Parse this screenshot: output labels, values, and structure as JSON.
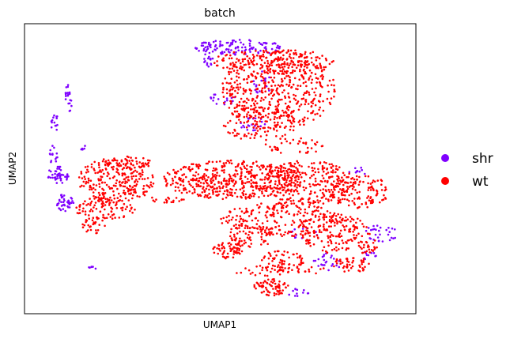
{
  "chart_data": {
    "type": "scatter",
    "title": "batch",
    "xlabel": "UMAP1",
    "ylabel": "UMAP2",
    "xticks": false,
    "yticks": false,
    "grid": false,
    "xlim": [
      0,
      100
    ],
    "ylim": [
      0,
      100
    ],
    "legend": {
      "placement": "right",
      "entries": [
        {
          "name": "shr",
          "color": "#7f00ff"
        },
        {
          "name": "wt",
          "color": "#ff0000"
        }
      ]
    },
    "series": [
      {
        "name": "shr",
        "color": "#7f00ff",
        "regions": [
          {
            "cx": 55,
            "cy": 93,
            "rx": 12,
            "ry": 2.8,
            "n": 110
          },
          {
            "cx": 47,
            "cy": 90,
            "rx": 1.6,
            "ry": 4.5,
            "n": 18
          },
          {
            "cx": 10.5,
            "cy": 75,
            "rx": 1.3,
            "ry": 5,
            "n": 20
          },
          {
            "cx": 7,
            "cy": 66,
            "rx": 1.2,
            "ry": 3,
            "n": 14
          },
          {
            "cx": 6.5,
            "cy": 55,
            "rx": 1.2,
            "ry": 3.5,
            "n": 14
          },
          {
            "cx": 8,
            "cy": 48,
            "rx": 3.2,
            "ry": 3.2,
            "n": 45
          },
          {
            "cx": 9.5,
            "cy": 38,
            "rx": 2.5,
            "ry": 3,
            "n": 40
          },
          {
            "cx": 14,
            "cy": 58,
            "rx": 0.9,
            "ry": 1.4,
            "n": 5
          },
          {
            "cx": 51,
            "cy": 75,
            "rx": 3.5,
            "ry": 2.5,
            "n": 18
          },
          {
            "cx": 58,
            "cy": 66,
            "rx": 4,
            "ry": 2.5,
            "n": 22
          },
          {
            "cx": 61,
            "cy": 80,
            "rx": 2.5,
            "ry": 5,
            "n": 18
          },
          {
            "cx": 92,
            "cy": 27,
            "rx": 4.5,
            "ry": 3,
            "n": 30
          },
          {
            "cx": 89,
            "cy": 19,
            "rx": 2,
            "ry": 2,
            "n": 10
          },
          {
            "cx": 78,
            "cy": 17,
            "rx": 4,
            "ry": 3,
            "n": 24
          },
          {
            "cx": 72,
            "cy": 27,
            "rx": 4,
            "ry": 2,
            "n": 12
          },
          {
            "cx": 70,
            "cy": 6,
            "rx": 3,
            "ry": 1.6,
            "n": 12
          },
          {
            "cx": 16.5,
            "cy": 15,
            "rx": 1.5,
            "ry": 0.6,
            "n": 6
          },
          {
            "cx": 86,
            "cy": 49,
            "rx": 2.5,
            "ry": 1.5,
            "n": 10
          }
        ]
      },
      {
        "name": "wt",
        "color": "#ff0000",
        "regions": [
          {
            "cx": 65,
            "cy": 78,
            "rx": 15,
            "ry": 14,
            "n": 520
          },
          {
            "cx": 64,
            "cy": 88,
            "rx": 16,
            "ry": 4.5,
            "n": 140
          },
          {
            "cx": 60,
            "cy": 66,
            "rx": 10,
            "ry": 6,
            "n": 110
          },
          {
            "cx": 69,
            "cy": 58,
            "rx": 8,
            "ry": 3,
            "n": 40
          },
          {
            "cx": 53,
            "cy": 46,
            "rx": 18,
            "ry": 7,
            "n": 480
          },
          {
            "cx": 73,
            "cy": 45,
            "rx": 12,
            "ry": 8,
            "n": 280
          },
          {
            "cx": 86,
            "cy": 42,
            "rx": 8,
            "ry": 6,
            "n": 130
          },
          {
            "cx": 66,
            "cy": 32,
            "rx": 16,
            "ry": 6,
            "n": 230
          },
          {
            "cx": 80,
            "cy": 27,
            "rx": 9,
            "ry": 7,
            "n": 150
          },
          {
            "cx": 52,
            "cy": 21,
            "rx": 4,
            "ry": 3,
            "n": 55
          },
          {
            "cx": 58,
            "cy": 26,
            "rx": 6,
            "ry": 4,
            "n": 60
          },
          {
            "cx": 66,
            "cy": 17,
            "rx": 6,
            "ry": 4,
            "n": 65
          },
          {
            "cx": 63,
            "cy": 8,
            "rx": 5,
            "ry": 3,
            "n": 70
          },
          {
            "cx": 84,
            "cy": 16,
            "rx": 5,
            "ry": 3,
            "n": 45
          },
          {
            "cx": 88,
            "cy": 23,
            "rx": 3,
            "ry": 3,
            "n": 25
          },
          {
            "cx": 23,
            "cy": 46,
            "rx": 10,
            "ry": 8,
            "n": 240
          },
          {
            "cx": 26,
            "cy": 52,
            "rx": 6,
            "ry": 2.5,
            "n": 50
          },
          {
            "cx": 20,
            "cy": 36,
            "rx": 8,
            "ry": 4,
            "n": 100
          },
          {
            "cx": 17,
            "cy": 30,
            "rx": 3,
            "ry": 3,
            "n": 30
          },
          {
            "cx": 36,
            "cy": 39,
            "rx": 5,
            "ry": 1.2,
            "n": 18
          },
          {
            "cx": 64,
            "cy": 14,
            "rx": 14,
            "ry": 2,
            "n": 40
          }
        ]
      }
    ]
  }
}
